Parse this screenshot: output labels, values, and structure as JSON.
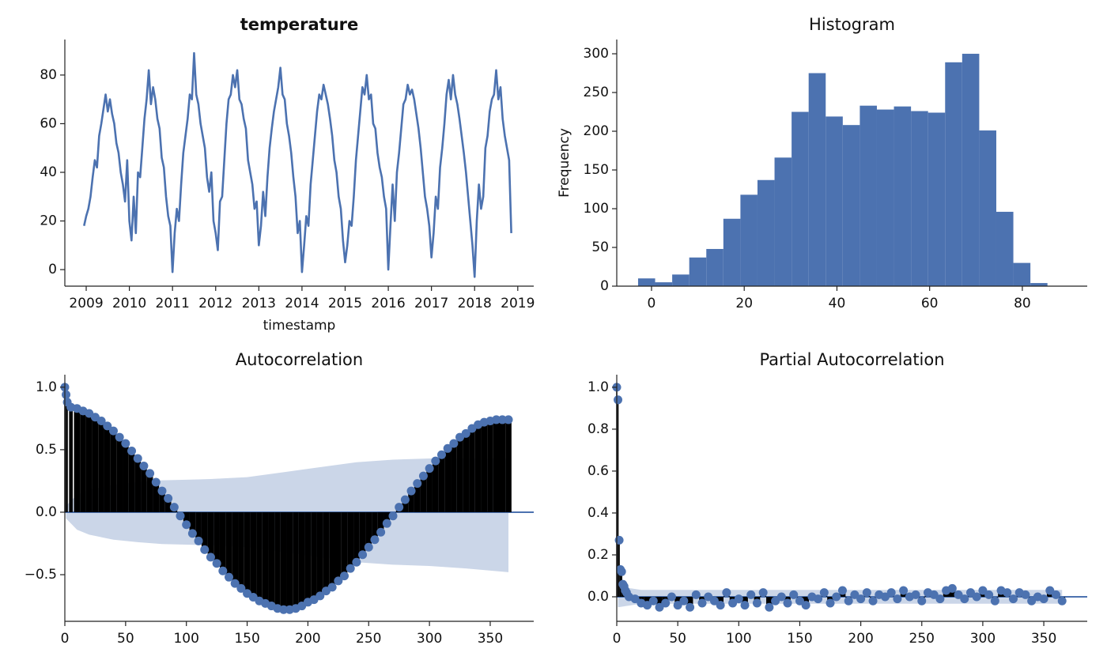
{
  "chart_data": [
    {
      "type": "line",
      "title": "temperature",
      "title_bold": true,
      "xlabel": "timestamp",
      "color": "#4c72b0",
      "x": [
        2008.95,
        2009,
        2009.05,
        2009.1,
        2009.15,
        2009.2,
        2009.25,
        2009.3,
        2009.35,
        2009.4,
        2009.45,
        2009.5,
        2009.55,
        2009.6,
        2009.65,
        2009.7,
        2009.75,
        2009.8,
        2009.85,
        2009.9,
        2009.95,
        2010,
        2010.05,
        2010.1,
        2010.15,
        2010.2,
        2010.25,
        2010.3,
        2010.35,
        2010.4,
        2010.45,
        2010.5,
        2010.55,
        2010.6,
        2010.65,
        2010.7,
        2010.75,
        2010.8,
        2010.85,
        2010.9,
        2010.95,
        2011,
        2011.05,
        2011.1,
        2011.15,
        2011.2,
        2011.25,
        2011.3,
        2011.35,
        2011.4,
        2011.45,
        2011.5,
        2011.55,
        2011.6,
        2011.65,
        2011.7,
        2011.75,
        2011.8,
        2011.85,
        2011.9,
        2011.95,
        2012,
        2012.05,
        2012.1,
        2012.15,
        2012.2,
        2012.25,
        2012.3,
        2012.35,
        2012.4,
        2012.45,
        2012.5,
        2012.55,
        2012.6,
        2012.65,
        2012.7,
        2012.75,
        2012.8,
        2012.85,
        2012.9,
        2012.95,
        2013,
        2013.05,
        2013.1,
        2013.15,
        2013.2,
        2013.25,
        2013.3,
        2013.35,
        2013.4,
        2013.45,
        2013.5,
        2013.55,
        2013.6,
        2013.65,
        2013.7,
        2013.75,
        2013.8,
        2013.85,
        2013.9,
        2013.95,
        2014,
        2014.05,
        2014.1,
        2014.15,
        2014.2,
        2014.25,
        2014.3,
        2014.35,
        2014.4,
        2014.45,
        2014.5,
        2014.55,
        2014.6,
        2014.65,
        2014.7,
        2014.75,
        2014.8,
        2014.85,
        2014.9,
        2014.95,
        2015,
        2015.05,
        2015.1,
        2015.15,
        2015.2,
        2015.25,
        2015.3,
        2015.35,
        2015.4,
        2015.45,
        2015.5,
        2015.55,
        2015.6,
        2015.65,
        2015.7,
        2015.75,
        2015.8,
        2015.85,
        2015.9,
        2015.95,
        2016,
        2016.05,
        2016.1,
        2016.15,
        2016.2,
        2016.25,
        2016.3,
        2016.35,
        2016.4,
        2016.45,
        2016.5,
        2016.55,
        2016.6,
        2016.65,
        2016.7,
        2016.75,
        2016.8,
        2016.85,
        2016.9,
        2016.95,
        2017,
        2017.05,
        2017.1,
        2017.15,
        2017.2,
        2017.25,
        2017.3,
        2017.35,
        2017.4,
        2017.45,
        2017.5,
        2017.55,
        2017.6,
        2017.65,
        2017.7,
        2017.75,
        2017.8,
        2017.85,
        2017.9,
        2017.95,
        2018,
        2018.05,
        2018.1,
        2018.15,
        2018.2,
        2018.25,
        2018.3,
        2018.35,
        2018.4,
        2018.45,
        2018.5,
        2018.55,
        2018.6,
        2018.65,
        2018.7,
        2018.75,
        2018.8,
        2018.85
      ],
      "values": [
        18,
        22,
        25,
        30,
        38,
        45,
        42,
        55,
        60,
        66,
        72,
        65,
        70,
        64,
        60,
        52,
        48,
        40,
        35,
        28,
        45,
        20,
        12,
        30,
        15,
        40,
        38,
        50,
        62,
        70,
        82,
        68,
        75,
        70,
        62,
        58,
        46,
        42,
        30,
        22,
        18,
        -1,
        15,
        25,
        20,
        35,
        48,
        55,
        62,
        72,
        70,
        89,
        72,
        68,
        60,
        55,
        50,
        38,
        32,
        40,
        20,
        15,
        8,
        28,
        30,
        45,
        60,
        70,
        72,
        80,
        75,
        82,
        70,
        68,
        62,
        58,
        45,
        40,
        35,
        25,
        28,
        10,
        18,
        32,
        22,
        38,
        50,
        58,
        65,
        70,
        75,
        83,
        72,
        70,
        60,
        55,
        48,
        38,
        30,
        15,
        20,
        -1,
        10,
        22,
        18,
        35,
        45,
        55,
        65,
        72,
        70,
        76,
        72,
        68,
        62,
        55,
        45,
        40,
        30,
        25,
        12,
        3,
        10,
        20,
        18,
        30,
        45,
        55,
        65,
        75,
        72,
        80,
        70,
        72,
        60,
        58,
        48,
        42,
        38,
        30,
        25,
        0,
        18,
        35,
        20,
        40,
        48,
        58,
        68,
        70,
        76,
        72,
        74,
        70,
        64,
        58,
        50,
        40,
        30,
        25,
        18,
        5,
        15,
        30,
        25,
        42,
        50,
        60,
        72,
        78,
        70,
        80,
        72,
        68,
        62,
        55,
        48,
        40,
        30,
        20,
        10,
        -3,
        20,
        35,
        25,
        30,
        50,
        55,
        65,
        70,
        72,
        82,
        70,
        75,
        62,
        55,
        50,
        45,
        15
      ],
      "xlim": [
        2008.505,
        2019.37
      ],
      "xticks": [
        2009,
        2010,
        2011,
        2012,
        2013,
        2014,
        2015,
        2016,
        2017,
        2018,
        2019
      ],
      "ylim": [
        -6.8,
        94.6
      ],
      "yticks": [
        0,
        20,
        40,
        60,
        80
      ]
    },
    {
      "type": "histogram",
      "title": "Histogram",
      "ylabel": "Frequency",
      "color": "#4c72b0",
      "bins": [
        -2.9,
        0.78,
        4.46,
        8.14,
        11.82,
        15.5,
        19.18,
        22.86,
        26.54,
        30.22,
        33.9,
        37.58,
        41.26,
        44.94,
        48.62,
        52.3,
        55.98,
        59.66,
        63.34,
        67.02,
        70.7,
        74.38,
        78.06,
        81.74,
        85.42
      ],
      "values": [
        10,
        5,
        15,
        37,
        48,
        87,
        118,
        137,
        166,
        225,
        275,
        219,
        208,
        233,
        228,
        232,
        226,
        224,
        289,
        300,
        201,
        96,
        30,
        4
      ],
      "xlim": [
        -7.5,
        94
      ],
      "xticks": [
        0,
        20,
        40,
        60,
        80
      ],
      "ylim": [
        0,
        318.4
      ],
      "yticks": [
        0,
        50,
        100,
        150,
        200,
        250,
        300
      ]
    },
    {
      "type": "stem",
      "title": "Autocorrelation",
      "color": "#4c72b0",
      "stem_color": "#000000",
      "band_color": "#cbd6e8",
      "x": [
        0,
        1,
        2,
        5,
        10,
        15,
        20,
        25,
        30,
        35,
        40,
        45,
        50,
        55,
        60,
        65,
        70,
        75,
        80,
        85,
        90,
        95,
        100,
        105,
        110,
        115,
        120,
        125,
        130,
        135,
        140,
        145,
        150,
        155,
        160,
        165,
        170,
        175,
        180,
        185,
        190,
        195,
        200,
        205,
        210,
        215,
        220,
        225,
        230,
        235,
        240,
        245,
        250,
        255,
        260,
        265,
        270,
        275,
        280,
        285,
        290,
        295,
        300,
        305,
        310,
        315,
        320,
        325,
        330,
        335,
        340,
        345,
        350,
        355,
        360,
        365
      ],
      "values": [
        1.0,
        0.94,
        0.88,
        0.84,
        0.83,
        0.81,
        0.79,
        0.76,
        0.73,
        0.69,
        0.65,
        0.6,
        0.55,
        0.49,
        0.43,
        0.37,
        0.31,
        0.24,
        0.17,
        0.11,
        0.04,
        -0.03,
        -0.1,
        -0.17,
        -0.23,
        -0.3,
        -0.36,
        -0.41,
        -0.47,
        -0.52,
        -0.57,
        -0.61,
        -0.65,
        -0.68,
        -0.71,
        -0.73,
        -0.75,
        -0.77,
        -0.78,
        -0.78,
        -0.77,
        -0.75,
        -0.72,
        -0.7,
        -0.67,
        -0.63,
        -0.6,
        -0.55,
        -0.51,
        -0.45,
        -0.4,
        -0.34,
        -0.28,
        -0.22,
        -0.16,
        -0.09,
        -0.03,
        0.04,
        0.1,
        0.17,
        0.23,
        0.29,
        0.35,
        0.41,
        0.46,
        0.51,
        0.55,
        0.6,
        0.63,
        0.67,
        0.7,
        0.72,
        0.73,
        0.74,
        0.74,
        0.74
      ],
      "confint": {
        "x": [
          1,
          10,
          20,
          40,
          60,
          80,
          100,
          120,
          150,
          180,
          210,
          240,
          270,
          300,
          330,
          365
        ],
        "upper": [
          0.05,
          0.14,
          0.18,
          0.22,
          0.24,
          0.255,
          0.26,
          0.265,
          0.28,
          0.32,
          0.36,
          0.4,
          0.42,
          0.43,
          0.43,
          0.43
        ],
        "lower": [
          -0.05,
          -0.14,
          -0.18,
          -0.22,
          -0.24,
          -0.255,
          -0.26,
          -0.265,
          -0.28,
          -0.32,
          -0.36,
          -0.4,
          -0.42,
          -0.43,
          -0.45,
          -0.48
        ]
      },
      "xlim": [
        0,
        385.8
      ],
      "xticks": [
        0,
        50,
        100,
        150,
        200,
        250,
        300,
        350
      ],
      "ylim": [
        -0.873,
        1.1
      ],
      "yticks": [
        {
          "value": -0.5,
          "label": "−0.5"
        },
        {
          "value": 0,
          "label": "0.0"
        },
        0.5,
        {
          "value": 1,
          "label": "1.0"
        }
      ]
    },
    {
      "type": "stem",
      "title": "Partial Autocorrelation",
      "color": "#4c72b0",
      "stem_color": "#000000",
      "band_color": "#cbd6e8",
      "x": [
        0,
        1,
        2,
        3,
        4,
        5,
        6,
        7,
        8,
        10,
        15,
        20,
        25,
        30,
        35,
        40,
        45,
        50,
        55,
        60,
        65,
        70,
        75,
        80,
        85,
        90,
        95,
        100,
        105,
        110,
        115,
        120,
        125,
        130,
        135,
        140,
        145,
        150,
        155,
        160,
        165,
        170,
        175,
        180,
        185,
        190,
        195,
        200,
        205,
        210,
        215,
        220,
        225,
        230,
        235,
        240,
        245,
        250,
        255,
        260,
        265,
        270,
        275,
        280,
        285,
        290,
        295,
        300,
        305,
        310,
        315,
        320,
        325,
        330,
        335,
        340,
        345,
        350,
        355,
        360,
        365
      ],
      "values": [
        1.0,
        0.94,
        0.27,
        0.13,
        0.12,
        0.06,
        0.05,
        0.03,
        0.02,
        0.0,
        -0.01,
        -0.03,
        -0.04,
        -0.02,
        -0.05,
        -0.03,
        0.0,
        -0.04,
        -0.02,
        -0.05,
        0.01,
        -0.03,
        0.0,
        -0.02,
        -0.04,
        0.02,
        -0.03,
        -0.01,
        -0.04,
        0.01,
        -0.03,
        0.02,
        -0.05,
        -0.02,
        0.0,
        -0.03,
        0.01,
        -0.02,
        -0.04,
        0.0,
        -0.01,
        0.02,
        -0.03,
        0.0,
        0.03,
        -0.02,
        0.01,
        -0.01,
        0.02,
        -0.02,
        0.01,
        0.0,
        0.02,
        -0.01,
        0.03,
        0.0,
        0.01,
        -0.02,
        0.02,
        0.01,
        -0.01,
        0.03,
        0.04,
        0.01,
        -0.01,
        0.02,
        0.0,
        0.03,
        0.01,
        -0.02,
        0.03,
        0.02,
        -0.01,
        0.02,
        0.01,
        -0.02,
        0.0,
        -0.01,
        0.03,
        0.01,
        -0.02
      ],
      "confint": {
        "x": [
          1,
          20,
          365
        ],
        "upper": [
          0.05,
          0.033,
          0.033
        ],
        "lower": [
          -0.05,
          -0.033,
          -0.033
        ]
      },
      "xlim": [
        0,
        385.6
      ],
      "xticks": [
        0,
        50,
        100,
        150,
        200,
        250,
        300,
        350
      ],
      "ylim": [
        -0.117,
        1.06
      ],
      "yticks": [
        {
          "value": 0,
          "label": "0.0"
        },
        0.2,
        0.4,
        0.6,
        0.8,
        {
          "value": 1,
          "label": "1.0"
        }
      ]
    }
  ]
}
